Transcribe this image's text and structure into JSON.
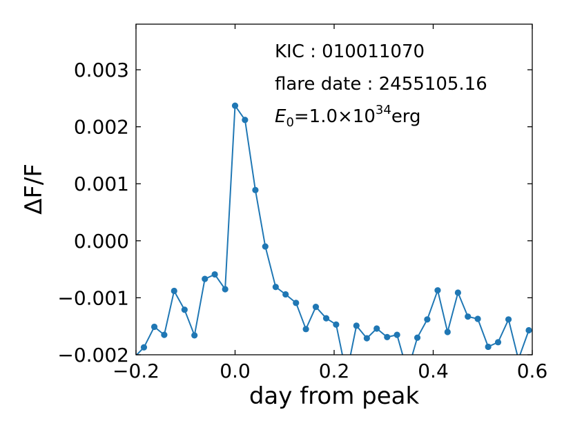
{
  "chart_data": {
    "type": "line",
    "xlabel": "day from peak",
    "ylabel": "ΔF/F",
    "xlim": [
      -0.2,
      0.6
    ],
    "ylim": [
      -0.002,
      0.0038
    ],
    "xticks": [
      "−0.2",
      "0.0",
      "0.2",
      "0.4",
      "0.6"
    ],
    "xtick_values": [
      -0.2,
      0.0,
      0.2,
      0.4,
      0.6
    ],
    "yticks": [
      "−0.002",
      "−0.001",
      "0.000",
      "0.001",
      "0.002",
      "0.003"
    ],
    "ytick_values": [
      -0.002,
      -0.001,
      0.0,
      0.001,
      0.002,
      0.003
    ],
    "grid": false,
    "series": [
      {
        "color": "#1f77b4",
        "marker": "circle",
        "x": [
          -0.204,
          -0.184,
          -0.163,
          -0.143,
          -0.123,
          -0.102,
          -0.082,
          -0.061,
          -0.041,
          -0.02,
          0.0,
          0.02,
          0.041,
          0.061,
          0.082,
          0.102,
          0.123,
          0.143,
          0.163,
          0.184,
          0.204,
          0.225,
          0.245,
          0.266,
          0.286,
          0.307,
          0.327,
          0.348,
          0.368,
          0.388,
          0.409,
          0.429,
          0.45,
          0.47,
          0.49,
          0.511,
          0.531,
          0.552,
          0.572,
          0.593
        ],
        "y": [
          -0.00205,
          -0.00187,
          -0.00151,
          -0.00165,
          -0.00088,
          -0.00121,
          -0.00166,
          -0.00067,
          -0.00059,
          -0.00085,
          0.00237,
          0.00212,
          0.00089,
          -0.0001,
          -0.00081,
          -0.00094,
          -0.00109,
          -0.00155,
          -0.00116,
          -0.00136,
          -0.00147,
          -0.00235,
          -0.00149,
          -0.00171,
          -0.00154,
          -0.00169,
          -0.00165,
          -0.0023,
          -0.0017,
          -0.00138,
          -0.00087,
          -0.0016,
          -0.00091,
          -0.00133,
          -0.00137,
          -0.00186,
          -0.00178,
          -0.00138,
          -0.00208,
          -0.00157
        ]
      }
    ],
    "annotations": {
      "kic": "KIC : 010011070",
      "flare_date": "flare date : 2455105.16",
      "energy_symbol": "E",
      "energy_subscript": "0",
      "energy_value": "=1.0×10",
      "energy_exponent": "34",
      "energy_unit": "erg"
    }
  }
}
